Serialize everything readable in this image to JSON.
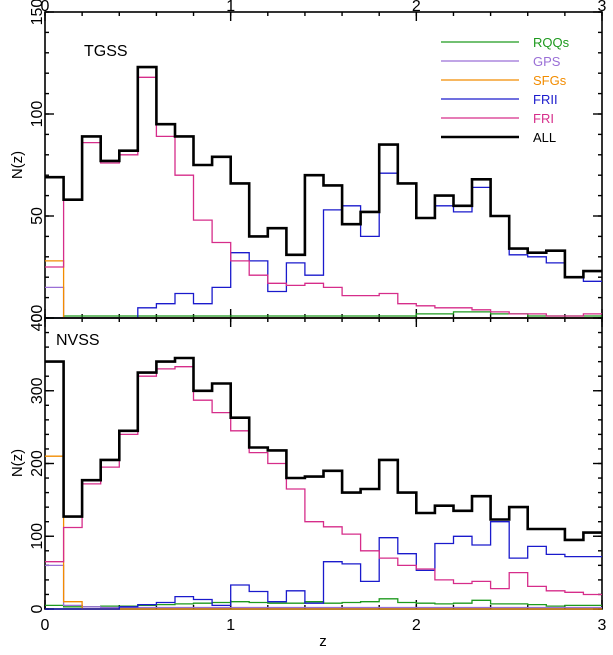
{
  "chart_data": [
    {
      "type": "line",
      "panel": "top",
      "title": "TGSS",
      "xlabel": "",
      "ylabel": "N(z)",
      "xlim": [
        0,
        3
      ],
      "ylim": [
        0,
        150
      ],
      "xticks": [
        "0",
        "1",
        "2",
        "3"
      ],
      "yticks": [
        "0",
        "50",
        "100",
        "150"
      ],
      "bin_edges": [
        0,
        0.1,
        0.2,
        0.3,
        0.4,
        0.5,
        0.6,
        0.7,
        0.8,
        0.9,
        1.0,
        1.1,
        1.2,
        1.3,
        1.4,
        1.5,
        1.6,
        1.7,
        1.8,
        1.9,
        2.0,
        2.1,
        2.2,
        2.3,
        2.4,
        2.5,
        2.6,
        2.7,
        2.8,
        2.9,
        3.0
      ],
      "legend_position": "top-right",
      "series": [
        {
          "name": "RQQs",
          "color": "#1e9a1e",
          "values": [
            0,
            1,
            1,
            1,
            1,
            1,
            1,
            1,
            1,
            1,
            1,
            1,
            1,
            1,
            1,
            1,
            1,
            1,
            1,
            1,
            2,
            2,
            3,
            3,
            2,
            2,
            1,
            1,
            1,
            1
          ]
        },
        {
          "name": "GPS",
          "color": "#9a6fd6",
          "values": [
            15,
            0,
            0,
            0,
            0,
            0,
            0,
            0,
            0,
            0,
            0,
            0,
            0,
            0,
            0,
            0,
            0,
            0,
            0,
            0,
            0,
            0,
            0,
            0,
            0,
            0,
            0,
            0,
            0,
            0
          ]
        },
        {
          "name": "SFGs",
          "color": "#f28c00",
          "values": [
            28,
            0,
            0,
            0,
            0,
            0,
            0,
            0,
            0,
            0,
            0,
            0,
            0,
            0,
            0,
            0,
            0,
            0,
            0,
            0,
            0,
            0,
            0,
            0,
            0,
            0,
            0,
            0,
            0,
            0
          ]
        },
        {
          "name": "FRII",
          "color": "#1a1acc",
          "values": [
            0,
            0,
            0,
            0,
            0,
            5,
            7,
            12,
            7,
            15,
            32,
            28,
            13,
            27,
            21,
            53,
            55,
            40,
            71,
            66,
            49,
            55,
            52,
            64,
            50,
            31,
            30,
            27,
            20,
            18
          ]
        },
        {
          "name": "FRI",
          "color": "#d62d8a",
          "values": [
            25,
            58,
            86,
            76,
            80,
            118,
            89,
            70,
            48,
            37,
            28,
            21,
            17,
            16,
            17,
            15,
            11,
            11,
            12,
            7,
            6,
            5,
            5,
            4,
            3,
            2,
            2,
            1,
            1,
            2
          ]
        },
        {
          "name": "ALL",
          "color": "#000000",
          "values": [
            69,
            58,
            89,
            77,
            82,
            123,
            95,
            89,
            75,
            79,
            66,
            40,
            44,
            31,
            70,
            65,
            46,
            52,
            85,
            66,
            49,
            60,
            55,
            68,
            50,
            34,
            32,
            33,
            20,
            23
          ]
        }
      ]
    },
    {
      "type": "line",
      "panel": "bottom",
      "title": "NVSS",
      "xlabel": "z",
      "ylabel": "N(z)",
      "xlim": [
        0,
        3
      ],
      "ylim": [
        0,
        400
      ],
      "xticks": [
        "0",
        "1",
        "2",
        "3"
      ],
      "yticks": [
        "0",
        "100",
        "200",
        "300",
        "400"
      ],
      "bin_edges": [
        0,
        0.1,
        0.2,
        0.3,
        0.4,
        0.5,
        0.6,
        0.7,
        0.8,
        0.9,
        1.0,
        1.1,
        1.2,
        1.3,
        1.4,
        1.5,
        1.6,
        1.7,
        1.8,
        1.9,
        2.0,
        2.1,
        2.2,
        2.3,
        2.4,
        2.5,
        2.6,
        2.7,
        2.8,
        2.9,
        3.0
      ],
      "series": [
        {
          "name": "RQQs",
          "color": "#1e9a1e",
          "values": [
            5,
            3,
            3,
            4,
            4,
            5,
            6,
            7,
            8,
            9,
            10,
            9,
            8,
            8,
            10,
            8,
            9,
            10,
            14,
            9,
            8,
            7,
            8,
            12,
            7,
            7,
            6,
            4,
            5,
            5
          ]
        },
        {
          "name": "GPS",
          "color": "#9a6fd6",
          "values": [
            60,
            5,
            3,
            2,
            2,
            2,
            2,
            2,
            2,
            2,
            2,
            2,
            2,
            2,
            2,
            2,
            2,
            2,
            2,
            2,
            2,
            2,
            2,
            2,
            2,
            2,
            2,
            2,
            2,
            2
          ]
        },
        {
          "name": "SFGs",
          "color": "#f28c00",
          "values": [
            210,
            10,
            0,
            0,
            0,
            0,
            0,
            0,
            0,
            0,
            0,
            0,
            0,
            0,
            0,
            0,
            0,
            0,
            0,
            0,
            0,
            0,
            0,
            0,
            0,
            0,
            0,
            0,
            0,
            0
          ]
        },
        {
          "name": "FRII",
          "color": "#1a1acc",
          "values": [
            0,
            0,
            0,
            0,
            3,
            6,
            9,
            17,
            13,
            5,
            33,
            24,
            10,
            25,
            8,
            65,
            62,
            38,
            98,
            76,
            53,
            90,
            100,
            88,
            120,
            70,
            86,
            75,
            72,
            72
          ]
        },
        {
          "name": "FRI",
          "color": "#d62d8a",
          "values": [
            65,
            112,
            172,
            195,
            240,
            320,
            330,
            333,
            287,
            270,
            245,
            215,
            200,
            165,
            120,
            113,
            103,
            80,
            70,
            60,
            55,
            40,
            35,
            38,
            28,
            50,
            31,
            25,
            23,
            20
          ]
        },
        {
          "name": "ALL",
          "color": "#000000",
          "values": [
            340,
            127,
            177,
            205,
            245,
            325,
            340,
            345,
            300,
            310,
            263,
            222,
            218,
            180,
            182,
            190,
            160,
            165,
            205,
            160,
            132,
            142,
            135,
            155,
            123,
            140,
            110,
            110,
            95,
            105
          ]
        }
      ]
    }
  ]
}
